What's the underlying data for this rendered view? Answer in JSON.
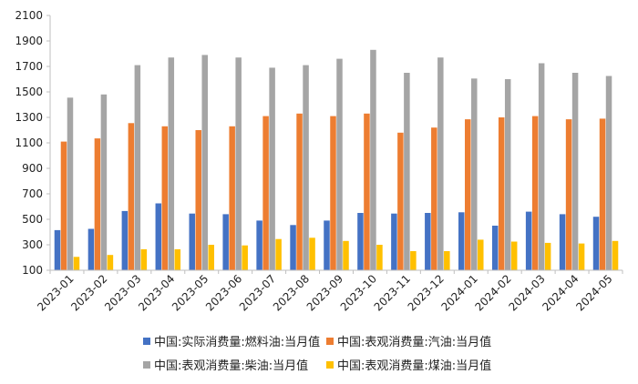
{
  "chart_data": {
    "type": "bar",
    "title": "",
    "xlabel": "",
    "ylabel": "",
    "ylim": [
      100,
      2100
    ],
    "yticks": [
      100,
      300,
      500,
      700,
      900,
      1100,
      1300,
      1500,
      1700,
      1900,
      2100
    ],
    "grid": false,
    "legend_position": "bottom",
    "categories": [
      "2023-01",
      "2023-02",
      "2023-03",
      "2023-04",
      "2023-05",
      "2023-06",
      "2023-07",
      "2023-08",
      "2023-09",
      "2023-10",
      "2023-11",
      "2023-12",
      "2024-01",
      "2024-02",
      "2024-03",
      "2024-04",
      "2024-05"
    ],
    "series": [
      {
        "name": "中国:实际消费量:燃料油:当月值",
        "color": "#4472C4",
        "values": [
          415,
          425,
          565,
          625,
          545,
          540,
          490,
          455,
          490,
          550,
          545,
          550,
          555,
          450,
          560,
          540,
          520
        ]
      },
      {
        "name": "中国:表观消费量:汽油:当月值",
        "color": "#ED7D31",
        "values": [
          1110,
          1135,
          1255,
          1230,
          1200,
          1230,
          1310,
          1330,
          1310,
          1330,
          1180,
          1220,
          1285,
          1300,
          1310,
          1285,
          1290
        ]
      },
      {
        "name": "中国:表观消费量:柴油:当月值",
        "color": "#A5A5A5",
        "values": [
          1455,
          1480,
          1710,
          1770,
          1790,
          1770,
          1690,
          1710,
          1760,
          1830,
          1650,
          1770,
          1605,
          1600,
          1725,
          1650,
          1625
        ]
      },
      {
        "name": "中国:表观消费量:煤油:当月值",
        "color": "#FFC000",
        "values": [
          205,
          220,
          265,
          265,
          300,
          295,
          345,
          355,
          330,
          300,
          250,
          250,
          340,
          325,
          315,
          310,
          330
        ]
      }
    ]
  }
}
